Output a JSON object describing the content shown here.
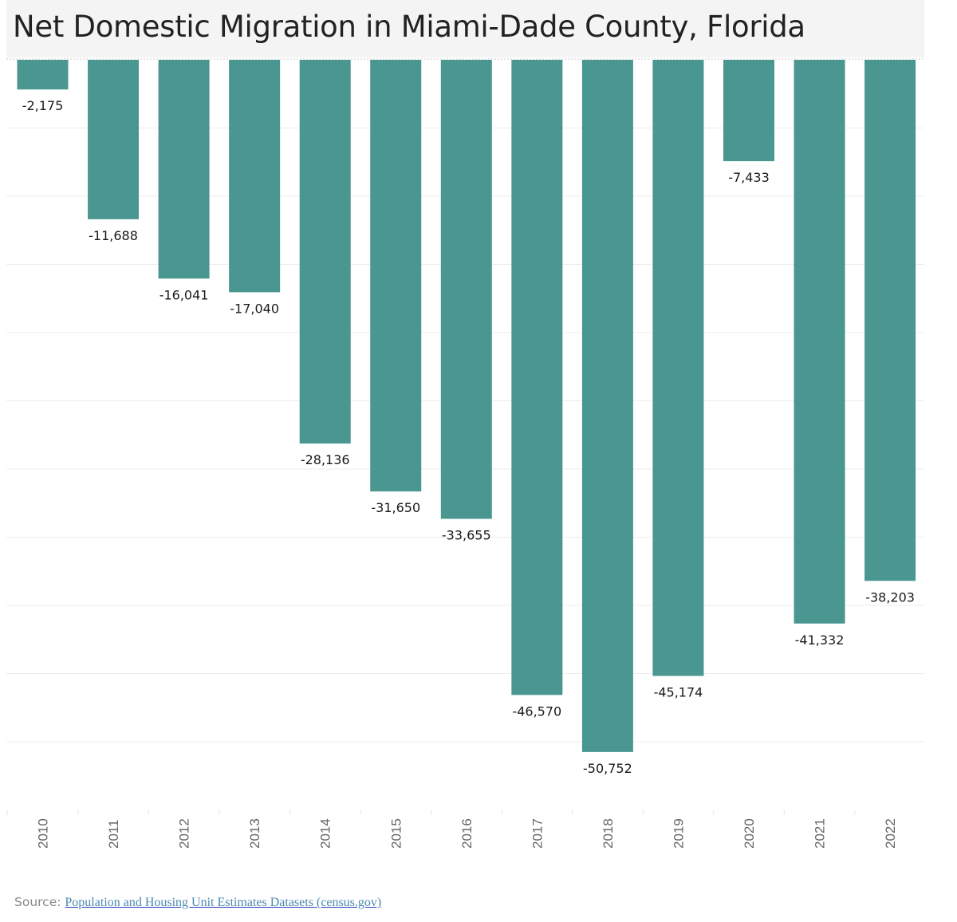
{
  "header": {
    "title": "Net Domestic Migration in Miami-Dade County, Florida"
  },
  "footer": {
    "source_prefix": "Source: ",
    "source_link_text": "Population and Housing Unit Estimates Datasets (census.gov)"
  },
  "colors": {
    "bar": "#4a9690",
    "title_background": "#f4f4f4",
    "gridline": "#ececec",
    "label_text": "#1a1a1a",
    "tick_text": "#666666"
  },
  "chart_data": {
    "type": "bar",
    "title": "Net Domestic Migration in Miami-Dade County, Florida",
    "xlabel": "",
    "ylabel": "",
    "categories": [
      "2010",
      "2011",
      "2012",
      "2013",
      "2014",
      "2015",
      "2016",
      "2017",
      "2018",
      "2019",
      "2020",
      "2021",
      "2022"
    ],
    "values": [
      -2175,
      -11688,
      -16041,
      -17040,
      -28136,
      -31650,
      -33655,
      -46570,
      -50752,
      -45174,
      -7433,
      -41332,
      -38203
    ],
    "value_labels": [
      "-2,175",
      "-11,688",
      "-16,041",
      "-17,040",
      "-28,136",
      "-31,650",
      "-33,655",
      "-46,570",
      "-50,752",
      "-45,174",
      "-7,433",
      "-41,332",
      "-38,203"
    ],
    "ylim": [
      -55000,
      0
    ],
    "gridline_step": 5000,
    "grid": true,
    "y_axis_labels_shown": false,
    "legend": "none",
    "x_tick_orientation": "vertical"
  }
}
